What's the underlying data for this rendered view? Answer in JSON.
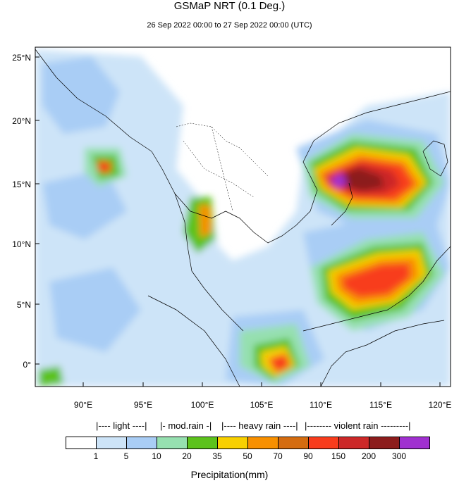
{
  "title": "GSMaP NRT (0.1 Deg.)",
  "subtitle": "26 Sep 2022 00:00 to 27 Sep 2022 00:00 (UTC)",
  "lat_labels": [
    "25°N",
    "20°N",
    "15°N",
    "10°N",
    "5°N",
    "0°"
  ],
  "lon_labels": [
    "90°E",
    "95°E",
    "100°E",
    "105°E",
    "110°E",
    "115°E",
    "120°E"
  ],
  "legend": {
    "categories": {
      "light": "|---- light ----|",
      "mod": "|- mod.rain -|",
      "heavy": "|---- heavy rain ----|",
      "violent": "|-------- violent rain ---------|"
    },
    "bin_colors": [
      "#ffffff",
      "#cde4f8",
      "#a9cdf5",
      "#96e0b0",
      "#5cc21c",
      "#f8d000",
      "#f89000",
      "#d46c10",
      "#f83c1c",
      "#cc2828",
      "#8c1c1c",
      "#a030d0"
    ],
    "thresholds": [
      "1",
      "5",
      "10",
      "20",
      "35",
      "50",
      "70",
      "90",
      "150",
      "200",
      "300"
    ],
    "title": "Precipitation(mm)"
  }
}
